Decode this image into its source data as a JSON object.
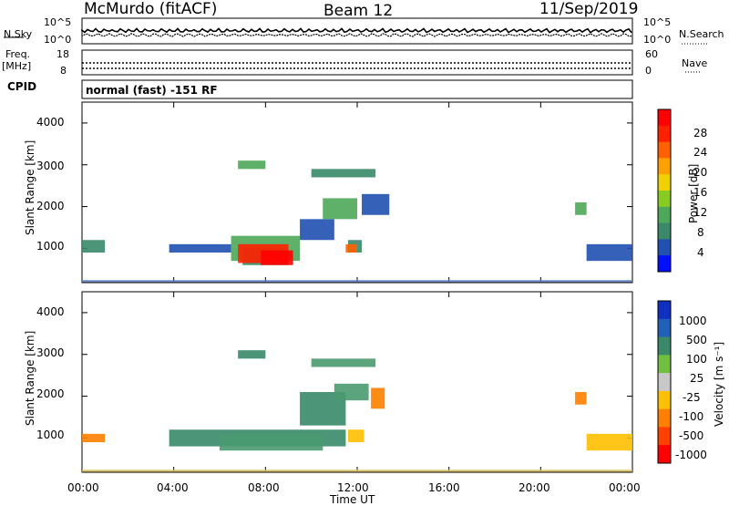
{
  "header": {
    "station": "McMurdo (fitACF)",
    "beam": "Beam 12",
    "date": "11/Sep/2019"
  },
  "sky_panel": {
    "left_label": "N.Sky",
    "right_label": "N.Search",
    "left_ticks": [
      "10^5",
      "10^0"
    ],
    "right_ticks": [
      "10^5",
      "10^0"
    ]
  },
  "freq_panel": {
    "left_label_line1": "Freq.",
    "left_label_line2": "[MHz]",
    "right_label": "Nave",
    "left_ticks": [
      "18",
      "8"
    ],
    "right_ticks": [
      "60",
      "0"
    ]
  },
  "cpid": {
    "label": "CPID",
    "value": "normal (fast) -151 RF"
  },
  "chart_data": [
    {
      "type": "heatmap",
      "name": "power",
      "ylabel": "Slant Range [km]",
      "x_range_hours": [
        0,
        24
      ],
      "ylim": [
        180,
        4500
      ],
      "yticks": [
        "1000",
        "2000",
        "3000",
        "4000"
      ],
      "colorbar": {
        "label": "Power [dB]",
        "ticks": [
          "4",
          "8",
          "12",
          "16",
          "20",
          "24",
          "28"
        ],
        "colors": [
          "#0010ff",
          "#2050b0",
          "#3a8a6a",
          "#4ea85a",
          "#88cc22",
          "#f0d000",
          "#ffa000",
          "#ff6000",
          "#ff2000",
          "#ff0000"
        ]
      }
    },
    {
      "type": "heatmap",
      "name": "velocity",
      "ylabel": "Slant Range [km]",
      "x_range_hours": [
        0,
        24
      ],
      "ylim": [
        180,
        4500
      ],
      "yticks": [
        "1000",
        "2000",
        "3000",
        "4000"
      ],
      "colorbar": {
        "label": "Velocity [m s⁻¹]",
        "ticks": [
          "1000",
          "500",
          "100",
          "25",
          "-25",
          "-100",
          "-500",
          "-1000"
        ],
        "colors": [
          "#1030c0",
          "#2060b8",
          "#3a8a6a",
          "#70c040",
          "#c8c8c8",
          "#ffc000",
          "#ff8000",
          "#ff4000",
          "#ff0000"
        ]
      }
    }
  ],
  "xaxis": {
    "ticks": [
      "00:00",
      "04:00",
      "08:00",
      "12:00",
      "16:00",
      "20:00",
      "00:00"
    ],
    "label": "Time UT"
  }
}
